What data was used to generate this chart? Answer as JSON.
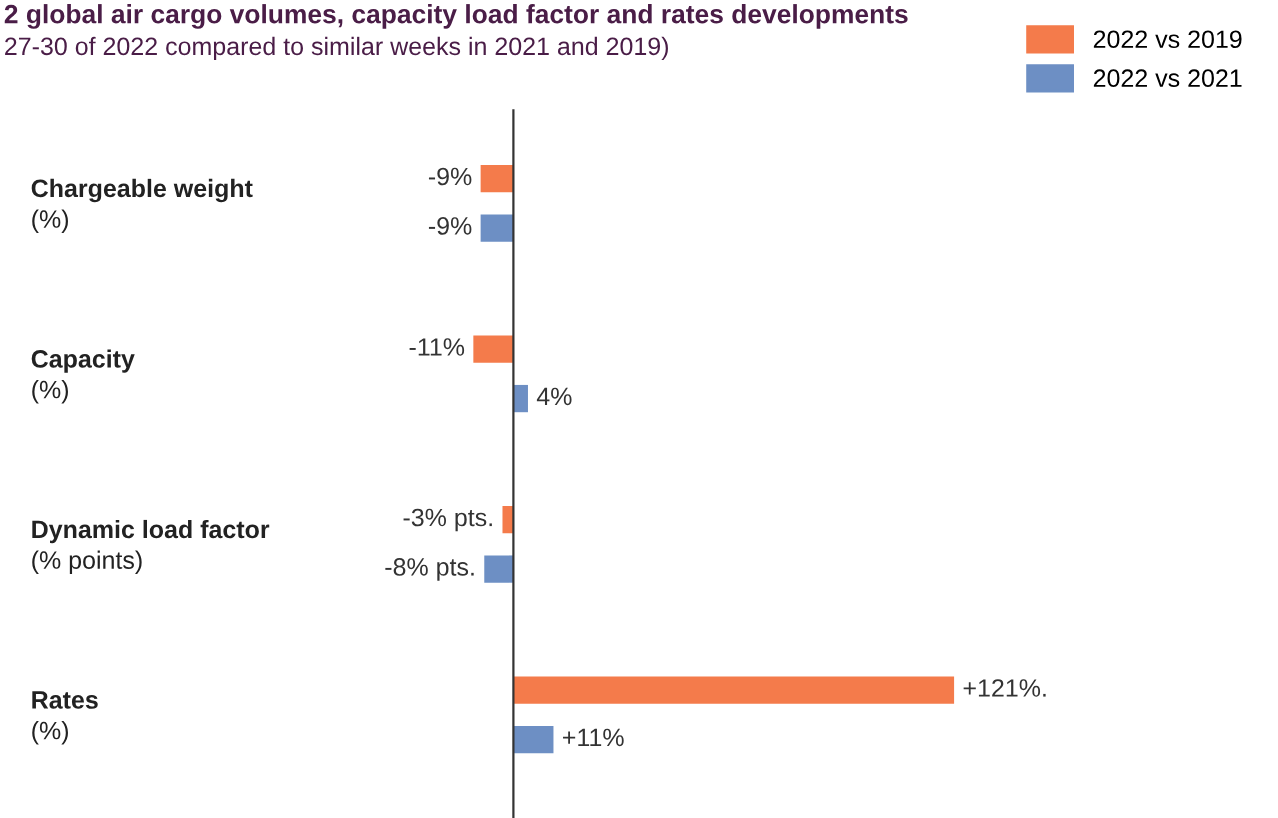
{
  "chart_data": {
    "type": "bar",
    "orientation": "horizontal",
    "title": "2 global air cargo volumes, capacity load factor and rates developments",
    "subtitle": "27-30 of 2022 compared to similar weeks in 2021 and 2019)",
    "categories": [
      "Chargeable weight\n(%)",
      "Capacity\n(%)",
      "Dynamic load factor\n(% points)",
      "Rates\n(%)"
    ],
    "series": [
      {
        "name": "2022 vs 2019",
        "color": "#f47b4b",
        "values": [
          -9,
          -11,
          -3,
          121
        ],
        "value_labels": [
          "-9%",
          "-11%",
          "-3% pts.",
          "+121%."
        ]
      },
      {
        "name": "2022 vs 2021",
        "color": "#6d8fc4",
        "values": [
          -9,
          4,
          -8,
          11
        ],
        "value_labels": [
          "-9%",
          "4%",
          "-8% pts.",
          "+11%"
        ]
      }
    ],
    "legend": "top right"
  }
}
